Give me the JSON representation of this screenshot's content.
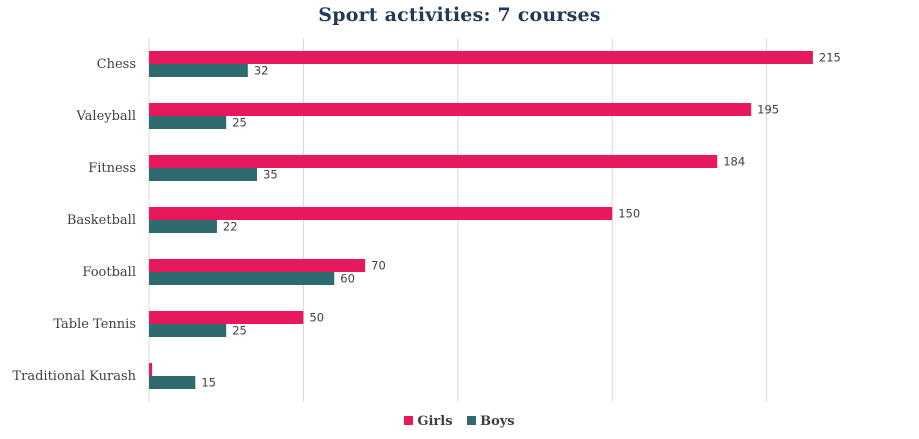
{
  "colors": {
    "girls": "#e8185f",
    "boys": "#2e6b6e",
    "grid": "#d9d9d9",
    "title": "#1f3b57"
  },
  "chart_data": {
    "type": "bar",
    "orientation": "horizontal",
    "title": "Sport activities: 7 courses",
    "categories": [
      "Chess",
      "Valeyball",
      "Fitness",
      "Basketball",
      "Football",
      "Table Tennis",
      "Traditional Kurash"
    ],
    "series": [
      {
        "name": "Girls",
        "values": [
          215,
          195,
          184,
          150,
          70,
          50,
          1
        ]
      },
      {
        "name": "Boys",
        "values": [
          32,
          25,
          35,
          22,
          60,
          25,
          15
        ]
      }
    ],
    "data_labels": {
      "Girls": [
        "215",
        "195",
        "184",
        "150",
        "70",
        "50",
        ""
      ],
      "Boys": [
        "32",
        "25",
        "35",
        "22",
        "60",
        "25",
        "15"
      ]
    },
    "xlim": [
      0,
      250
    ],
    "x_axis_labels_shown": false,
    "grid": true,
    "legend": "bottom"
  }
}
